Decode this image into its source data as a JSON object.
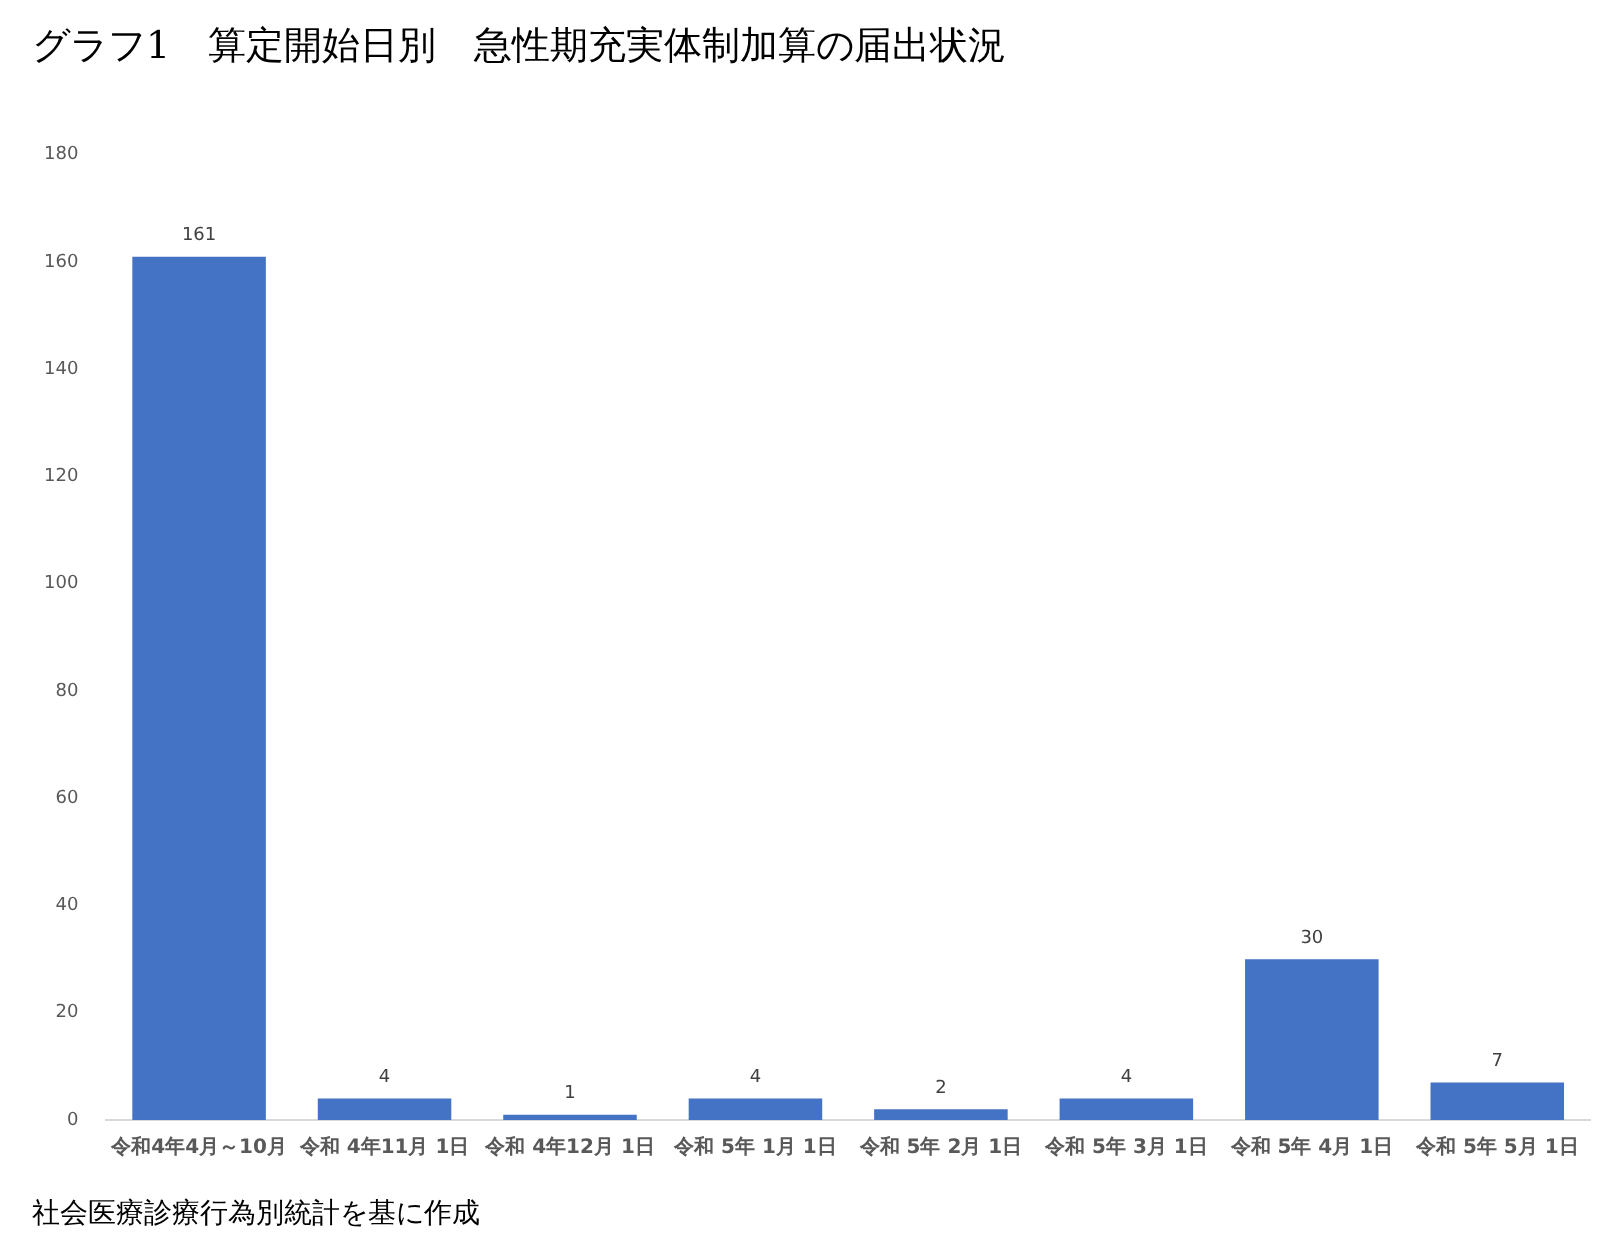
{
  "chart_data": {
    "type": "bar",
    "title": "グラフ1　算定開始日別　急性期充実体制加算の届出状況",
    "categories": [
      "令和4年4月～10月",
      "令和 4年11月 1日",
      "令和 4年12月 1日",
      "令和 5年 1月 1日",
      "令和 5年 2月 1日",
      "令和 5年 3月 1日",
      "令和 5年 4月 1日",
      "令和 5年 5月 1日"
    ],
    "values": [
      161,
      4,
      1,
      4,
      2,
      4,
      30,
      7
    ],
    "color": "#4472c4",
    "ylim": [
      0,
      180
    ],
    "yticks": [
      0,
      20,
      40,
      60,
      80,
      100,
      120,
      140,
      160,
      180
    ],
    "grid": false,
    "data_labels": true,
    "annotations": [
      "社会医療診療行為別統計を基に作成"
    ]
  }
}
